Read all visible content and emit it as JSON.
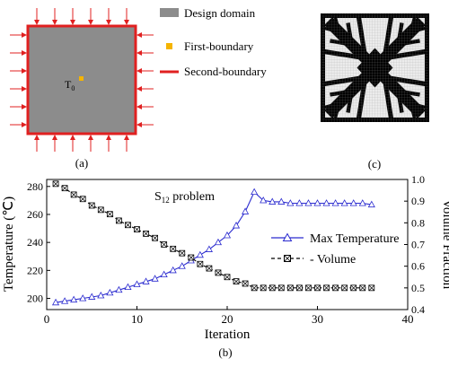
{
  "panel_a": {
    "label": "(a)",
    "point_label": "T",
    "point_sub": "0",
    "legend": [
      {
        "label": "Design domain",
        "color": "#8c8c8c",
        "kind": "square"
      },
      {
        "label": "First-boundary",
        "color": "#f5b400",
        "kind": "dot"
      },
      {
        "label": "Second-boundary",
        "color": "#e02020",
        "kind": "line"
      }
    ]
  },
  "panel_c": {
    "label": "(c)",
    "colors": {
      "solid": "#000000",
      "void": "#ececec",
      "grid": "#9a9a9a"
    }
  },
  "panel_b": {
    "label": "(b)",
    "annotation": "S",
    "annotation_sub": "12",
    "annotation_tail": " problem"
  },
  "chart_data": {
    "type": "line",
    "xlabel": "Iteration",
    "ylabel_left": "Temperature (℃)",
    "ylabel_right": "Volume Fraction",
    "xlim": [
      0,
      40
    ],
    "xticks": [
      0,
      10,
      20,
      30,
      40
    ],
    "ylim_left": [
      192,
      285
    ],
    "yticks_left": [
      200,
      220,
      240,
      260,
      280
    ],
    "ylim_right": [
      0.4,
      1.0
    ],
    "yticks_right": [
      0.4,
      0.5,
      0.6,
      0.7,
      0.8,
      0.9,
      1.0
    ],
    "legend_position": "middle-right",
    "series": [
      {
        "name": "Max Temperature",
        "axis": "left",
        "color": "#2a2acf",
        "marker": "triangle",
        "x": [
          1,
          2,
          3,
          4,
          5,
          6,
          7,
          8,
          9,
          10,
          11,
          12,
          13,
          14,
          15,
          16,
          17,
          18,
          19,
          20,
          21,
          22,
          23,
          24,
          25,
          26,
          27,
          28,
          29,
          30,
          31,
          32,
          33,
          34,
          35,
          36
        ],
        "y": [
          197,
          198,
          199,
          200,
          201,
          202,
          204,
          206,
          208,
          210,
          212,
          214,
          217,
          220,
          223,
          227,
          231,
          235,
          240,
          245,
          252,
          262,
          276,
          270,
          269,
          269,
          268,
          268,
          268,
          268,
          268,
          268,
          268,
          268,
          268,
          267
        ]
      },
      {
        "name": "Volume",
        "axis": "right",
        "color": "#000000",
        "marker": "crossed-square",
        "x": [
          1,
          2,
          3,
          4,
          5,
          6,
          7,
          8,
          9,
          10,
          11,
          12,
          13,
          14,
          15,
          16,
          17,
          18,
          19,
          20,
          21,
          22,
          23,
          24,
          25,
          26,
          27,
          28,
          29,
          30,
          31,
          32,
          33,
          34,
          35,
          36
        ],
        "y": [
          0.98,
          0.96,
          0.93,
          0.91,
          0.88,
          0.86,
          0.84,
          0.81,
          0.79,
          0.77,
          0.75,
          0.73,
          0.7,
          0.68,
          0.66,
          0.64,
          0.61,
          0.59,
          0.57,
          0.55,
          0.53,
          0.52,
          0.5,
          0.5,
          0.5,
          0.5,
          0.5,
          0.5,
          0.5,
          0.5,
          0.5,
          0.5,
          0.5,
          0.5,
          0.5,
          0.5
        ]
      }
    ]
  }
}
